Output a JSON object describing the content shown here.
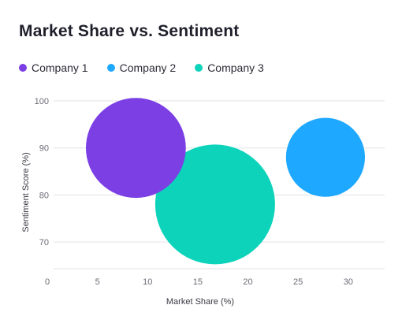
{
  "chart_data": {
    "type": "bubble",
    "title": "Market Share vs. Sentiment",
    "xlabel": "Market Share (%)",
    "ylabel": "Sentiment Score (%)",
    "xlim": [
      0,
      33
    ],
    "ylim": [
      63,
      102
    ],
    "x_ticks": [
      0,
      5,
      10,
      15,
      20,
      25,
      30
    ],
    "y_ticks": [
      70,
      80,
      90,
      100
    ],
    "grid": "horizontal",
    "legend_position": "top-left",
    "series": [
      {
        "name": "Company 1",
        "x": 8.2,
        "y": 90,
        "size": 16000,
        "color": "#7B3FE4"
      },
      {
        "name": "Company 2",
        "x": 27.1,
        "y": 88,
        "size": 10000,
        "color": "#1EA8FF"
      },
      {
        "name": "Company 3",
        "x": 16.1,
        "y": 78,
        "size": 23000,
        "color": "#0DD3BB"
      }
    ]
  }
}
